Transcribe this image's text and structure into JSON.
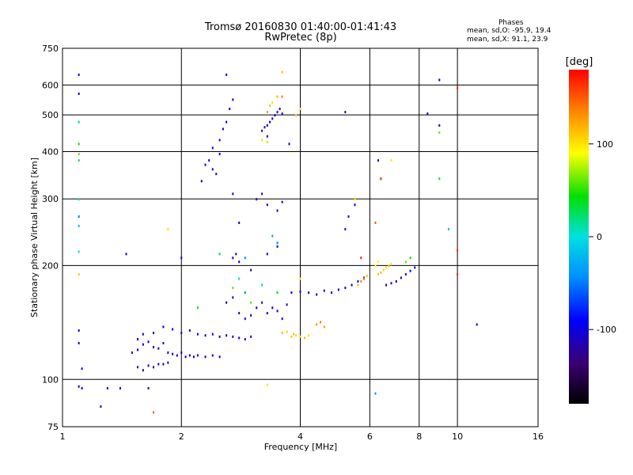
{
  "title_line1": "Tromsø 20160830 01:40:00-01:41:43",
  "title_line2": "RwPretec (8p)",
  "stats": {
    "title": "Phases",
    "o_line": "mean, sd,O: -95.9, 19.4",
    "x_line": "mean, sd,X:  91.1, 23.9"
  },
  "chart_data": {
    "type": "scatter",
    "title": "Tromsø 20160830 01:40:00-01:41:43",
    "subtitle": "RwPretec (8p)",
    "xlabel": "Frequency [MHz]",
    "ylabel": "Stationary phase Virtual Height [km]",
    "x_scale": "log",
    "y_scale": "log",
    "xlim": [
      1,
      16
    ],
    "ylim": [
      75,
      750
    ],
    "x_ticks": [
      1,
      2,
      4,
      6,
      8,
      10,
      16
    ],
    "x_tick_labels": [
      "1",
      "2",
      "4",
      "6",
      "8",
      "10",
      "16"
    ],
    "y_ticks": [
      75,
      100,
      200,
      300,
      400,
      500,
      600,
      750
    ],
    "y_tick_labels": [
      "75",
      "100",
      "200",
      "300",
      "400",
      "500",
      "600",
      "750"
    ],
    "grid": true,
    "colorbar": {
      "label": "[deg]",
      "range": [
        -180,
        180
      ],
      "ticks": [
        100,
        0,
        -100
      ],
      "tick_labels": [
        "100",
        "0",
        "-100"
      ]
    },
    "series": [
      {
        "points": [
          [
            1.5,
            118,
            -100
          ],
          [
            1.55,
            120,
            -110
          ],
          [
            1.6,
            124,
            -105
          ],
          [
            1.65,
            126,
            -98
          ],
          [
            1.7,
            122,
            -115
          ],
          [
            1.75,
            121,
            -108
          ],
          [
            1.8,
            125,
            -112
          ],
          [
            1.85,
            118,
            -96
          ],
          [
            1.9,
            117,
            -120
          ],
          [
            1.95,
            116,
            -102
          ],
          [
            2.0,
            118,
            -110
          ],
          [
            2.05,
            115,
            -100
          ],
          [
            2.1,
            116,
            -125
          ],
          [
            2.15,
            115,
            -95
          ],
          [
            2.2,
            116,
            -108
          ],
          [
            2.3,
            115,
            -112
          ],
          [
            2.4,
            116,
            -104
          ],
          [
            2.5,
            115,
            -118
          ],
          [
            1.55,
            128,
            -100
          ],
          [
            1.6,
            132,
            -110
          ],
          [
            1.7,
            133,
            -102
          ],
          [
            1.8,
            138,
            -115
          ],
          [
            1.9,
            136,
            -96
          ],
          [
            2.0,
            133,
            -108
          ],
          [
            2.1,
            135,
            -120
          ],
          [
            2.2,
            132,
            -100
          ],
          [
            2.3,
            131,
            -110
          ],
          [
            2.4,
            132,
            -95
          ],
          [
            2.5,
            130,
            -112
          ],
          [
            2.6,
            131,
            -105
          ],
          [
            2.7,
            130,
            -118
          ],
          [
            2.8,
            129,
            -100
          ],
          [
            2.9,
            128,
            -108
          ],
          [
            3.0,
            130,
            -104
          ],
          [
            1.55,
            108,
            -120
          ],
          [
            1.6,
            106,
            -112
          ],
          [
            1.65,
            109,
            -100
          ],
          [
            1.7,
            108,
            -118
          ],
          [
            1.75,
            110,
            -105
          ],
          [
            1.8,
            110,
            -96
          ],
          [
            1.85,
            111,
            -110
          ],
          [
            1.1,
            96,
            -110
          ],
          [
            1.12,
            95,
            -100
          ],
          [
            1.3,
            95,
            -115
          ],
          [
            1.4,
            95,
            -98
          ],
          [
            1.65,
            95,
            -108
          ],
          [
            1.25,
            85,
            -120
          ],
          [
            2.4,
            410,
            -100
          ],
          [
            2.5,
            430,
            -110
          ],
          [
            2.55,
            460,
            -96
          ],
          [
            2.6,
            480,
            -112
          ],
          [
            2.65,
            520,
            -104
          ],
          [
            2.7,
            550,
            -120
          ],
          [
            2.35,
            380,
            -110
          ],
          [
            2.4,
            360,
            -100
          ],
          [
            2.45,
            350,
            -115
          ],
          [
            2.3,
            370,
            -98
          ],
          [
            2.5,
            395,
            -108
          ],
          [
            3.3,
            470,
            -100
          ],
          [
            3.35,
            480,
            -110
          ],
          [
            3.4,
            490,
            -112
          ],
          [
            3.45,
            500,
            -104
          ],
          [
            3.5,
            510,
            -96
          ],
          [
            3.55,
            520,
            -118
          ],
          [
            3.6,
            505,
            -108
          ],
          [
            3.2,
            455,
            -100
          ],
          [
            3.25,
            465,
            -110
          ],
          [
            3.3,
            440,
            -120
          ],
          [
            3.1,
            300,
            -100
          ],
          [
            3.2,
            310,
            -112
          ],
          [
            3.3,
            290,
            -108
          ],
          [
            3.5,
            280,
            -100
          ],
          [
            3.6,
            295,
            -115
          ],
          [
            2.7,
            310,
            -105
          ],
          [
            2.8,
            260,
            -110
          ],
          [
            2.7,
            210,
            -100
          ],
          [
            2.75,
            215,
            -96
          ],
          [
            2.8,
            205,
            -118
          ],
          [
            3.0,
            195,
            -108
          ],
          [
            3.3,
            215,
            -110
          ],
          [
            3.5,
            225,
            -100
          ],
          [
            3.1,
            155,
            -100
          ],
          [
            3.2,
            160,
            -110
          ],
          [
            3.3,
            150,
            -108
          ],
          [
            3.4,
            155,
            -96
          ],
          [
            3.5,
            152,
            -112
          ],
          [
            3.6,
            145,
            -104
          ],
          [
            3.7,
            158,
            -118
          ],
          [
            2.8,
            150,
            -110
          ],
          [
            2.9,
            145,
            -100
          ],
          [
            3.0,
            148,
            -120
          ],
          [
            2.6,
            160,
            -108
          ],
          [
            2.7,
            165,
            -100
          ],
          [
            2.9,
            170,
            -112
          ],
          [
            3.8,
            170,
            -100
          ],
          [
            4.0,
            171,
            -110
          ],
          [
            4.2,
            170,
            -104
          ],
          [
            4.4,
            168,
            -96
          ],
          [
            4.6,
            172,
            -118
          ],
          [
            4.8,
            170,
            -108
          ],
          [
            5.0,
            173,
            -100
          ],
          [
            5.2,
            175,
            -110
          ],
          [
            5.4,
            178,
            -112
          ],
          [
            5.6,
            182,
            -104
          ],
          [
            5.8,
            186,
            -100
          ],
          [
            6.6,
            178,
            -110
          ],
          [
            6.8,
            180,
            -100
          ],
          [
            7.0,
            182,
            -108
          ],
          [
            7.2,
            186,
            -116
          ],
          [
            7.4,
            190,
            -104
          ],
          [
            7.6,
            194,
            -100
          ],
          [
            7.8,
            198,
            -110
          ],
          [
            5.2,
            250,
            -110
          ],
          [
            5.3,
            270,
            -100
          ],
          [
            5.5,
            290,
            -104
          ],
          [
            6.4,
            340,
            -110
          ],
          [
            6.3,
            380,
            -100
          ],
          [
            1.1,
            640,
            -110
          ],
          [
            1.1,
            570,
            -100
          ],
          [
            2.6,
            640,
            -112
          ],
          [
            9.0,
            620,
            -104
          ],
          [
            9.0,
            470,
            -100
          ],
          [
            8.4,
            505,
            -110
          ],
          [
            11.2,
            140,
            -104
          ],
          [
            2.0,
            210,
            -100
          ],
          [
            2.25,
            335,
            -110
          ],
          [
            1.45,
            215,
            -100
          ],
          [
            5.2,
            510,
            -96
          ],
          [
            3.75,
            420,
            -110
          ],
          [
            1.1,
            135,
            -115
          ],
          [
            1.1,
            125,
            -110
          ],
          [
            1.12,
            107,
            -100
          ],
          [
            4.0,
            185,
            100
          ],
          [
            1.1,
            480,
            20
          ],
          [
            1.1,
            420,
            40
          ],
          [
            1.1,
            395,
            60
          ],
          [
            1.1,
            380,
            30
          ],
          [
            1.1,
            300,
            10
          ],
          [
            1.1,
            270,
            -50
          ],
          [
            1.1,
            255,
            -20
          ],
          [
            1.1,
            218,
            5
          ],
          [
            1.1,
            190,
            110
          ],
          [
            3.8,
            130,
            110
          ],
          [
            3.85,
            132,
            115
          ],
          [
            3.9,
            131,
            105
          ],
          [
            4.0,
            130,
            112
          ],
          [
            4.1,
            129,
            120
          ],
          [
            4.2,
            131,
            100
          ],
          [
            3.7,
            134,
            108
          ],
          [
            3.6,
            133,
            118
          ],
          [
            4.4,
            140,
            130
          ],
          [
            4.5,
            142,
            140
          ],
          [
            4.6,
            138,
            125
          ],
          [
            5.6,
            178,
            120
          ],
          [
            5.7,
            182,
            135
          ],
          [
            5.8,
            185,
            145
          ],
          [
            5.9,
            188,
            115
          ],
          [
            6.3,
            190,
            110
          ],
          [
            6.4,
            192,
            118
          ],
          [
            6.5,
            195,
            108
          ],
          [
            6.6,
            198,
            100
          ],
          [
            6.7,
            200,
            112
          ],
          [
            6.8,
            202,
            104
          ],
          [
            7.4,
            205,
            60
          ],
          [
            7.6,
            210,
            40
          ],
          [
            6.2,
            200,
            90
          ],
          [
            6.3,
            205,
            95
          ],
          [
            3.6,
            560,
            140
          ],
          [
            3.6,
            650,
            120
          ],
          [
            3.3,
            510,
            130
          ],
          [
            3.35,
            530,
            110
          ],
          [
            3.4,
            540,
            100
          ],
          [
            3.5,
            560,
            118
          ],
          [
            3.9,
            500,
            110
          ],
          [
            4.0,
            520,
            100
          ],
          [
            3.3,
            425,
            110
          ],
          [
            3.2,
            430,
            100
          ],
          [
            3.0,
            160,
            60
          ],
          [
            2.9,
            170,
            30
          ],
          [
            3.2,
            178,
            20
          ],
          [
            2.8,
            185,
            10
          ],
          [
            3.5,
            170,
            40
          ],
          [
            5.5,
            300,
            100
          ],
          [
            5.7,
            210,
            170
          ],
          [
            6.4,
            340,
            160
          ],
          [
            6.2,
            260,
            150
          ],
          [
            10.0,
            590,
            170
          ],
          [
            10.0,
            220,
            170
          ],
          [
            10.0,
            190,
            170
          ],
          [
            9.5,
            250,
            -20
          ],
          [
            9.0,
            340,
            30
          ],
          [
            9.0,
            450,
            60
          ],
          [
            1.85,
            250,
            100
          ],
          [
            1.7,
            82,
            150
          ],
          [
            6.8,
            380,
            100
          ],
          [
            6.2,
            92,
            -40
          ],
          [
            3.3,
            97,
            100
          ],
          [
            2.5,
            215,
            30
          ],
          [
            2.2,
            155,
            40
          ],
          [
            2.7,
            175,
            60
          ],
          [
            2.9,
            210,
            -40
          ],
          [
            3.4,
            240,
            -30
          ],
          [
            3.5,
            230,
            -50
          ]
        ]
      }
    ]
  }
}
